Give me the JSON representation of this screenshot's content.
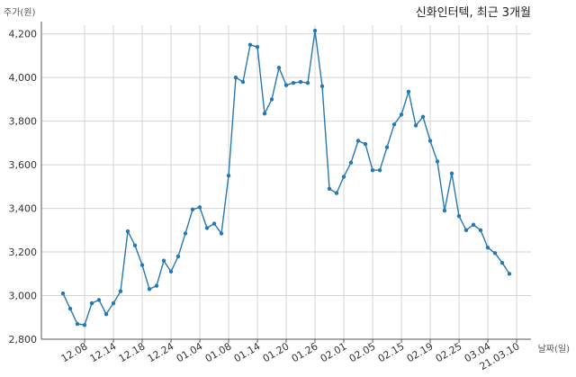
{
  "chart_data": {
    "type": "line",
    "title": "신화인터텍, 최근 3개월",
    "ylabel": "주가(원)",
    "xlabel": "날짜(일)",
    "ylim": [
      2800,
      4240
    ],
    "yticks": [
      2800,
      3000,
      3200,
      3400,
      3600,
      3800,
      4000,
      4200
    ],
    "ytick_labels": [
      "2,800",
      "3,000",
      "3,200",
      "3,400",
      "3,600",
      "3,800",
      "4,000",
      "4,200"
    ],
    "xtick_labels": [
      "12.08",
      "12.14",
      "12.18",
      "12.24",
      "01.04",
      "01.08",
      "01.14",
      "01.20",
      "01.26",
      "02.01",
      "02.05",
      "02.15",
      "02.19",
      "02.25",
      "03.04",
      "21.03.10"
    ],
    "xtick_positions": [
      3,
      7,
      11,
      15,
      19,
      23,
      27,
      31,
      35,
      39,
      43,
      47,
      51,
      55,
      59,
      63
    ],
    "grid": true,
    "series": [
      {
        "color": "#2878b0",
        "values": [
          3010,
          2940,
          2870,
          2865,
          2965,
          2980,
          2915,
          2965,
          3020,
          3295,
          3230,
          3140,
          3030,
          3045,
          3160,
          3110,
          3180,
          3285,
          3395,
          3405,
          3310,
          3330,
          3285,
          3550,
          4000,
          3980,
          4150,
          4140,
          3835,
          3900,
          4045,
          3965,
          3975,
          3980,
          3975,
          4215,
          3960,
          3490,
          3470,
          3545,
          3610,
          3710,
          3695,
          3575,
          3575,
          3680,
          3785,
          3830,
          3935,
          3780,
          3820,
          3710,
          3615,
          3390,
          3560,
          3365,
          3300,
          3325,
          3300,
          3220,
          3195,
          3150,
          3100
        ]
      }
    ]
  }
}
